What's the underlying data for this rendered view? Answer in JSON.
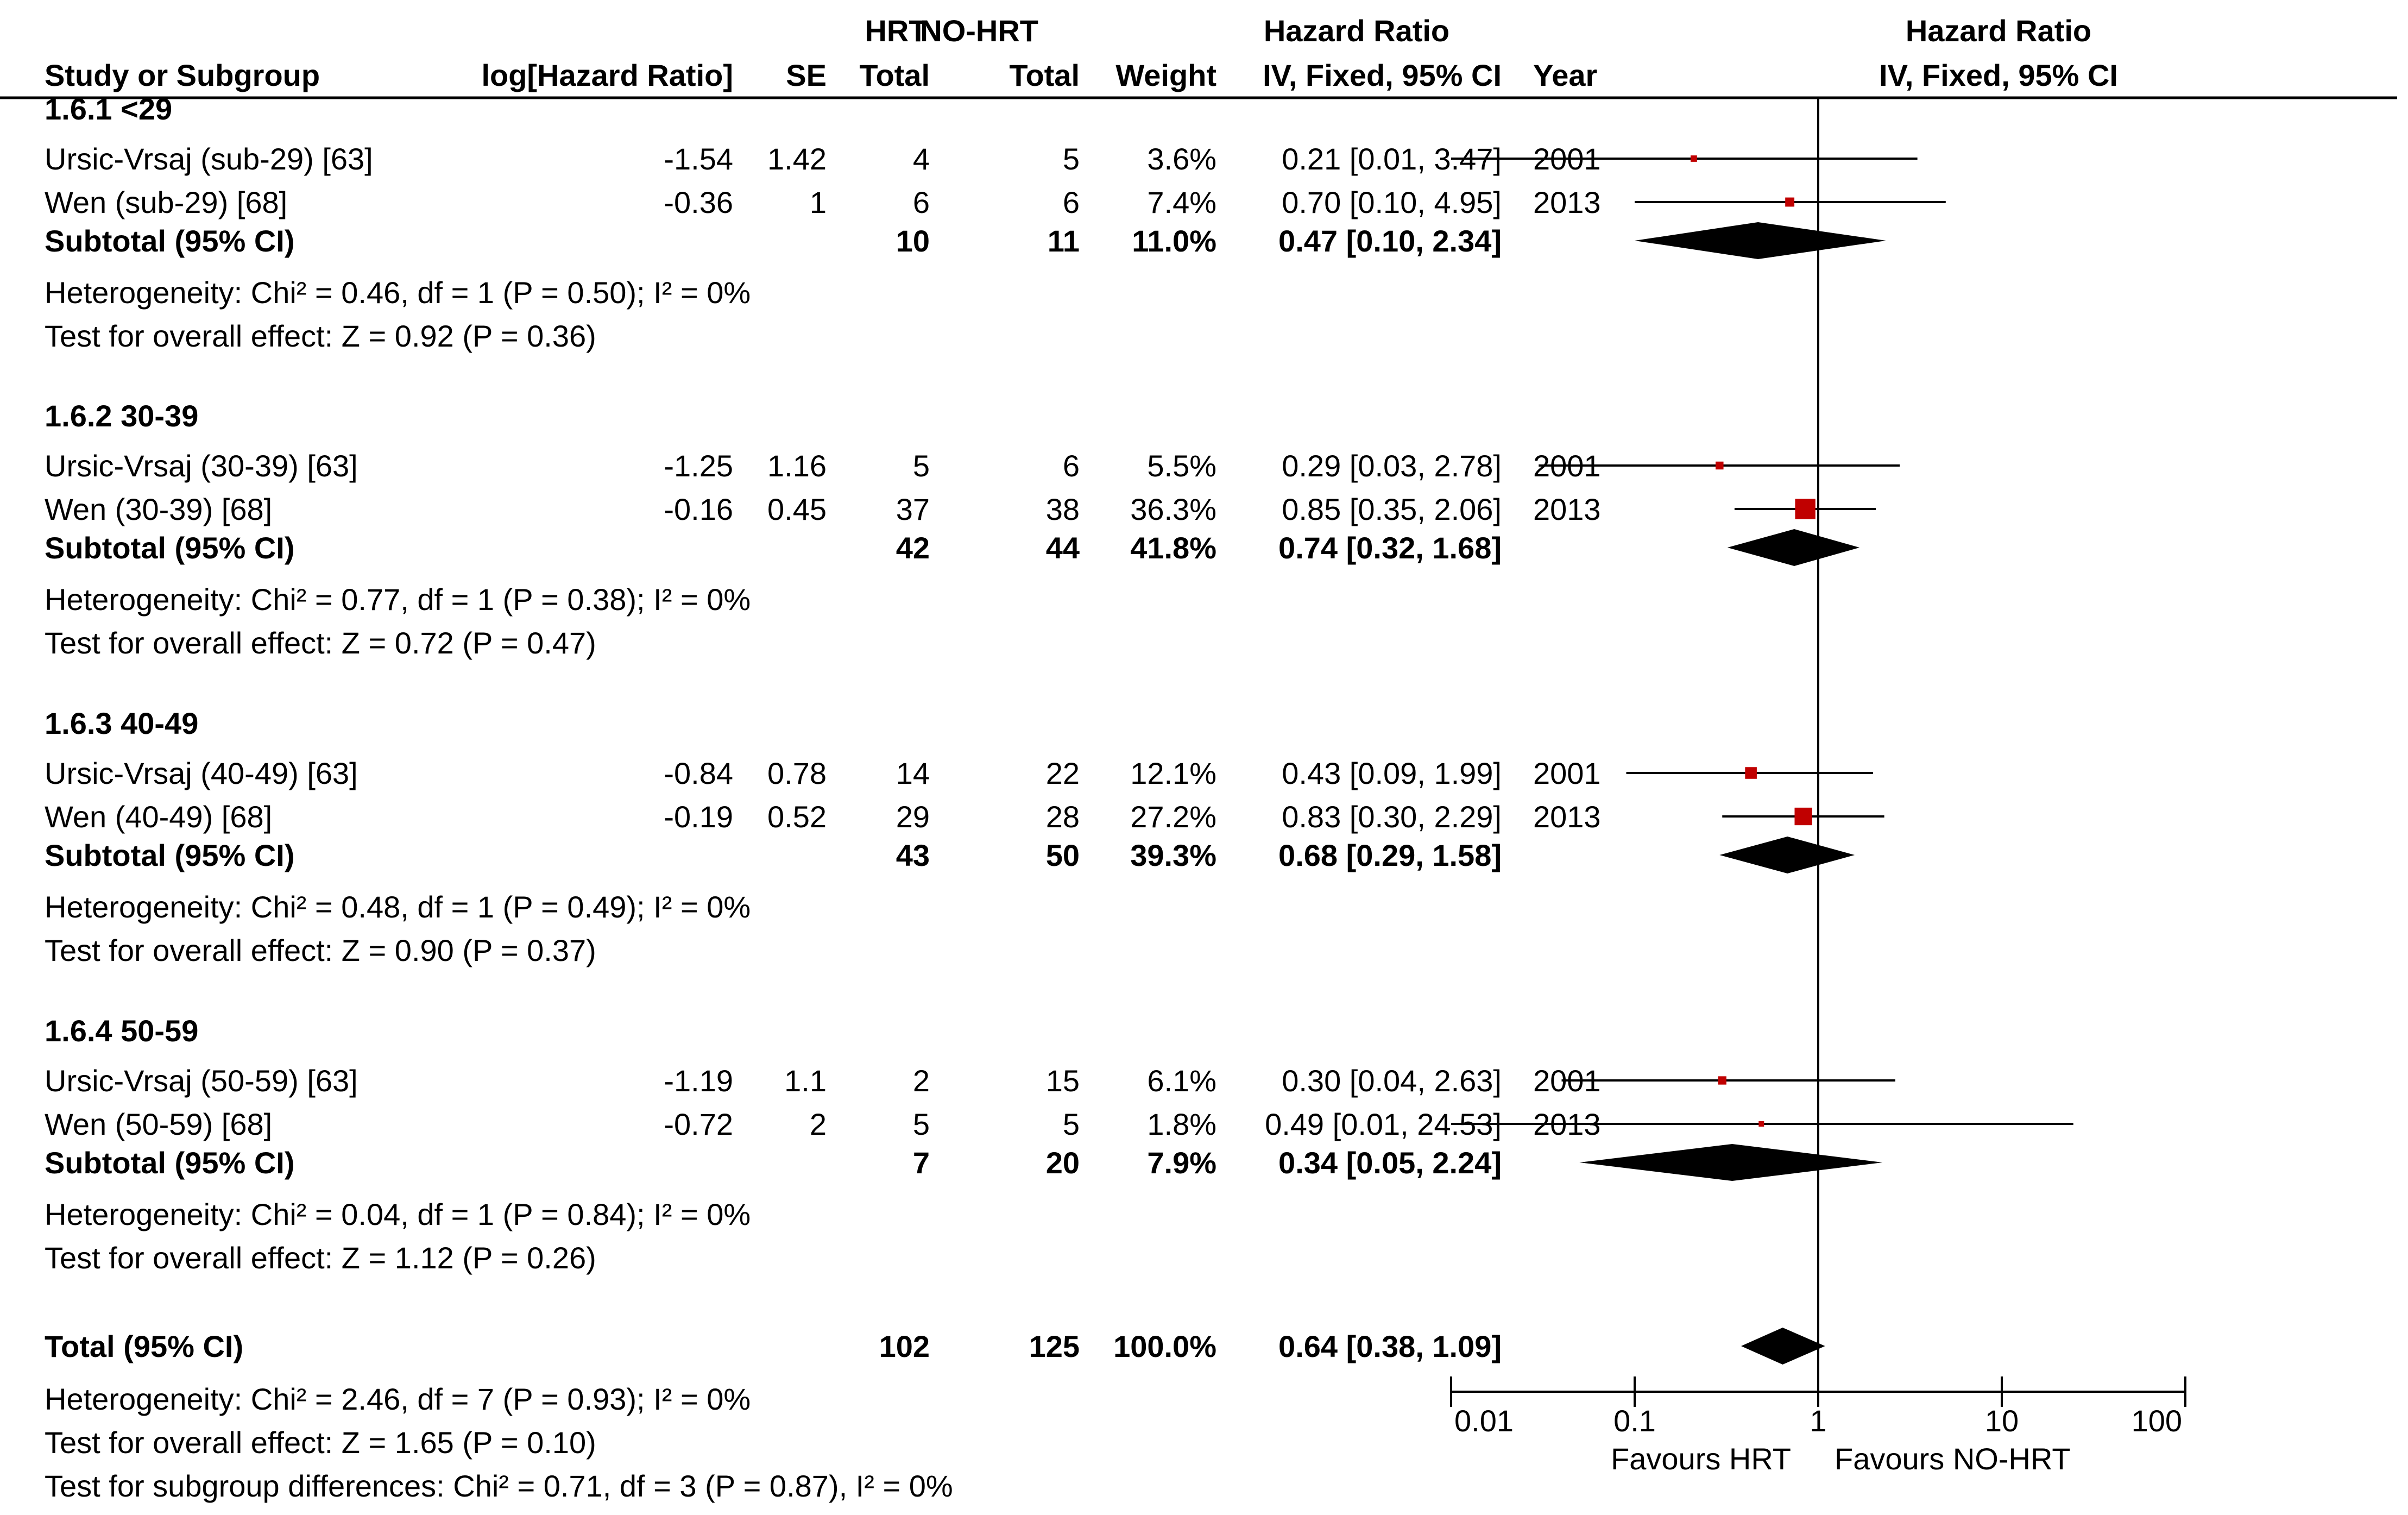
{
  "header": {
    "study": "Study or Subgroup",
    "log_hr": "log[Hazard Ratio]",
    "se": "SE",
    "hrt_top": "HRT",
    "hrt_bottom": "Total",
    "nohrt_top": "NO-HRT",
    "nohrt_bottom": "Total",
    "weight": "Weight",
    "hr_top": "Hazard Ratio",
    "hr_bottom": "IV, Fixed, 95% CI",
    "year": "Year",
    "plot_top": "Hazard Ratio",
    "plot_bottom": "IV, Fixed, 95% CI"
  },
  "chart_data": {
    "type": "forest",
    "scale": "log",
    "x_ticks": [
      0.01,
      0.1,
      1,
      10,
      100
    ],
    "x_tick_labels": [
      "0.01",
      "0.1",
      "1",
      "10",
      "100"
    ],
    "favours_left": "Favours HRT",
    "favours_right": "Favours NO-HRT",
    "subgroups": [
      {
        "label": "1.6.1 <29",
        "studies": [
          {
            "name": "Ursic-Vrsaj (sub-29) [63]",
            "loghr": "-1.54",
            "se": "1.42",
            "hrt": "4",
            "nohrt": "5",
            "weight": "3.6%",
            "ci_text": "0.21 [0.01, 3.47]",
            "year": "2001",
            "hr": 0.21,
            "lo": 0.01,
            "hi": 3.47,
            "w": 3.6
          },
          {
            "name": "Wen (sub-29) [68]",
            "loghr": "-0.36",
            "se": "1",
            "hrt": "6",
            "nohrt": "6",
            "weight": "7.4%",
            "ci_text": "0.70 [0.10, 4.95]",
            "year": "2013",
            "hr": 0.7,
            "lo": 0.1,
            "hi": 4.95,
            "w": 7.4
          }
        ],
        "subtotal": {
          "label": "Subtotal (95% CI)",
          "hrt": "10",
          "nohrt": "11",
          "weight": "11.0%",
          "ci_text": "0.47 [0.10, 2.34]",
          "hr": 0.47,
          "lo": 0.1,
          "hi": 2.34
        },
        "heterogeneity": "Heterogeneity: Chi² = 0.46, df = 1 (P = 0.50); I² = 0%",
        "overall": "Test for overall effect: Z = 0.92 (P = 0.36)"
      },
      {
        "label": "1.6.2 30-39",
        "studies": [
          {
            "name": "Ursic-Vrsaj (30-39) [63]",
            "loghr": "-1.25",
            "se": "1.16",
            "hrt": "5",
            "nohrt": "6",
            "weight": "5.5%",
            "ci_text": "0.29 [0.03, 2.78]",
            "year": "2001",
            "hr": 0.29,
            "lo": 0.03,
            "hi": 2.78,
            "w": 5.5
          },
          {
            "name": "Wen (30-39) [68]",
            "loghr": "-0.16",
            "se": "0.45",
            "hrt": "37",
            "nohrt": "38",
            "weight": "36.3%",
            "ci_text": "0.85 [0.35, 2.06]",
            "year": "2013",
            "hr": 0.85,
            "lo": 0.35,
            "hi": 2.06,
            "w": 36.3
          }
        ],
        "subtotal": {
          "label": "Subtotal (95% CI)",
          "hrt": "42",
          "nohrt": "44",
          "weight": "41.8%",
          "ci_text": "0.74 [0.32, 1.68]",
          "hr": 0.74,
          "lo": 0.32,
          "hi": 1.68
        },
        "heterogeneity": "Heterogeneity: Chi² = 0.77, df = 1 (P = 0.38); I² = 0%",
        "overall": "Test for overall effect: Z = 0.72 (P = 0.47)"
      },
      {
        "label": "1.6.3 40-49",
        "studies": [
          {
            "name": "Ursic-Vrsaj (40-49) [63]",
            "loghr": "-0.84",
            "se": "0.78",
            "hrt": "14",
            "nohrt": "22",
            "weight": "12.1%",
            "ci_text": "0.43 [0.09, 1.99]",
            "year": "2001",
            "hr": 0.43,
            "lo": 0.09,
            "hi": 1.99,
            "w": 12.1
          },
          {
            "name": "Wen (40-49) [68]",
            "loghr": "-0.19",
            "se": "0.52",
            "hrt": "29",
            "nohrt": "28",
            "weight": "27.2%",
            "ci_text": "0.83 [0.30, 2.29]",
            "year": "2013",
            "hr": 0.83,
            "lo": 0.3,
            "hi": 2.29,
            "w": 27.2
          }
        ],
        "subtotal": {
          "label": "Subtotal (95% CI)",
          "hrt": "43",
          "nohrt": "50",
          "weight": "39.3%",
          "ci_text": "0.68 [0.29, 1.58]",
          "hr": 0.68,
          "lo": 0.29,
          "hi": 1.58
        },
        "heterogeneity": "Heterogeneity: Chi² = 0.48, df = 1 (P = 0.49); I² = 0%",
        "overall": "Test for overall effect: Z = 0.90 (P = 0.37)"
      },
      {
        "label": "1.6.4 50-59",
        "studies": [
          {
            "name": "Ursic-Vrsaj (50-59) [63]",
            "loghr": "-1.19",
            "se": "1.1",
            "hrt": "2",
            "nohrt": "15",
            "weight": "6.1%",
            "ci_text": "0.30 [0.04, 2.63]",
            "year": "2001",
            "hr": 0.3,
            "lo": 0.04,
            "hi": 2.63,
            "w": 6.1
          },
          {
            "name": "Wen (50-59) [68]",
            "loghr": "-0.72",
            "se": "2",
            "hrt": "5",
            "nohrt": "5",
            "weight": "1.8%",
            "ci_text": "0.49 [0.01, 24.53]",
            "year": "2013",
            "hr": 0.49,
            "lo": 0.01,
            "hi": 24.53,
            "w": 1.8
          }
        ],
        "subtotal": {
          "label": "Subtotal (95% CI)",
          "hrt": "7",
          "nohrt": "20",
          "weight": "7.9%",
          "ci_text": "0.34 [0.05, 2.24]",
          "hr": 0.34,
          "lo": 0.05,
          "hi": 2.24
        },
        "heterogeneity": "Heterogeneity: Chi² = 0.04, df = 1 (P = 0.84); I² = 0%",
        "overall": "Test for overall effect: Z = 1.12 (P = 0.26)"
      }
    ],
    "total": {
      "label": "Total (95% CI)",
      "hrt": "102",
      "nohrt": "125",
      "weight": "100.0%",
      "ci_text": "0.64 [0.38, 1.09]",
      "hr": 0.64,
      "lo": 0.38,
      "hi": 1.09
    },
    "total_heterogeneity": "Heterogeneity: Chi² = 2.46, df = 7 (P = 0.93); I² = 0%",
    "total_overall": "Test for overall effect: Z = 1.65 (P = 0.10)",
    "subgroup_diff": "Test for subgroup differences: Chi² = 0.71, df = 3 (P = 0.87), I² = 0%",
    "colors": {
      "study_marker": "#c00000",
      "diamond": "#000000",
      "line": "#000000"
    }
  }
}
